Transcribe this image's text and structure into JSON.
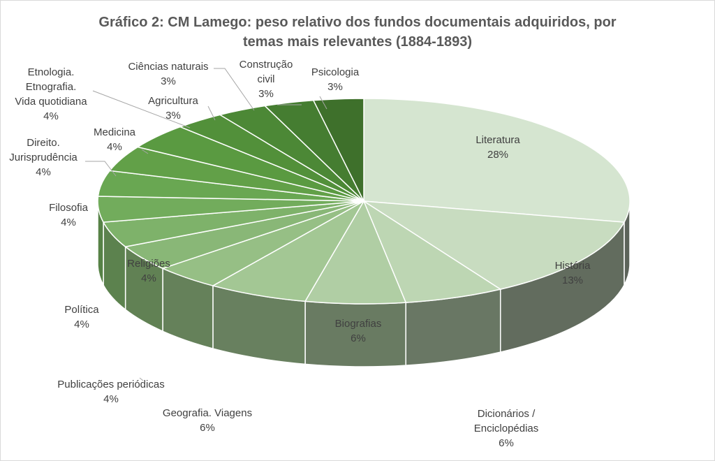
{
  "chart_data": {
    "type": "pie",
    "title": "Gráfico 2: CM Lamego: peso relativo dos fundos documentais adquiridos, por temas mais relevantes (1884-1893)",
    "slices": [
      {
        "label": "Literatura",
        "value": 28,
        "pct": "28%",
        "color": "#d5e5d0"
      },
      {
        "label": "História",
        "value": 13,
        "pct": "13%",
        "color": "#c8dcc0"
      },
      {
        "label": "Dicionários / Enciclopédias",
        "value": 6,
        "pct": "6%",
        "color": "#bdd6b3"
      },
      {
        "label": "Biografias",
        "value": 6,
        "pct": "6%",
        "color": "#b0cea4"
      },
      {
        "label": "Geografia. Viagens",
        "value": 6,
        "pct": "6%",
        "color": "#a3c794"
      },
      {
        "label": "Publicações periódicas",
        "value": 4,
        "pct": "4%",
        "color": "#96bf85"
      },
      {
        "label": "Política",
        "value": 4,
        "pct": "4%",
        "color": "#89b777"
      },
      {
        "label": "Religiões",
        "value": 4,
        "pct": "4%",
        "color": "#7eb26a"
      },
      {
        "label": "Filosofia",
        "value": 4,
        "pct": "4%",
        "color": "#72ac5c"
      },
      {
        "label": "Direito. Jurisprudência",
        "value": 4,
        "pct": "4%",
        "color": "#69a752"
      },
      {
        "label": "Medicina",
        "value": 4,
        "pct": "4%",
        "color": "#62a048"
      },
      {
        "label": "Etnologia. Etnografia. Vida quotidiana",
        "value": 4,
        "pct": "4%",
        "color": "#5a9a41"
      },
      {
        "label": "Agricultura",
        "value": 3,
        "pct": "3%",
        "color": "#52903a"
      },
      {
        "label": "Ciências naturais",
        "value": 3,
        "pct": "3%",
        "color": "#4c8836"
      },
      {
        "label": "Construção civil",
        "value": 3,
        "pct": "3%",
        "color": "#457d31"
      },
      {
        "label": "Psicologia",
        "value": 3,
        "pct": "3%",
        "color": "#3e702b"
      }
    ],
    "legend": "none",
    "style": "3d-exploded-none"
  }
}
